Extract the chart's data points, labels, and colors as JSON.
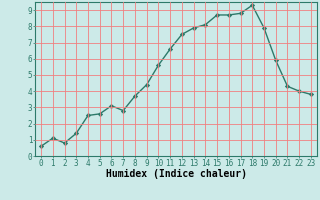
{
  "x": [
    0,
    1,
    2,
    3,
    4,
    5,
    6,
    7,
    8,
    9,
    10,
    11,
    12,
    13,
    14,
    15,
    16,
    17,
    18,
    19,
    20,
    21,
    22,
    23
  ],
  "y": [
    0.6,
    1.1,
    0.8,
    1.4,
    2.5,
    2.6,
    3.1,
    2.8,
    3.7,
    4.4,
    5.6,
    6.6,
    7.5,
    7.9,
    8.1,
    8.7,
    8.7,
    8.8,
    9.3,
    7.9,
    5.9,
    4.3,
    4.0,
    3.8
  ],
  "line_color": "#2d7a6a",
  "marker": "D",
  "marker_size": 2.2,
  "bg_color": "#cceae8",
  "grid_color": "#f08080",
  "xlabel": "Humidex (Indice chaleur)",
  "xlim": [
    -0.5,
    23.5
  ],
  "ylim": [
    0,
    9.5
  ],
  "xticks": [
    0,
    1,
    2,
    3,
    4,
    5,
    6,
    7,
    8,
    9,
    10,
    11,
    12,
    13,
    14,
    15,
    16,
    17,
    18,
    19,
    20,
    21,
    22,
    23
  ],
  "yticks": [
    0,
    1,
    2,
    3,
    4,
    5,
    6,
    7,
    8,
    9
  ],
  "tick_fontsize": 5.5,
  "xlabel_fontsize": 7,
  "linewidth": 1.0
}
